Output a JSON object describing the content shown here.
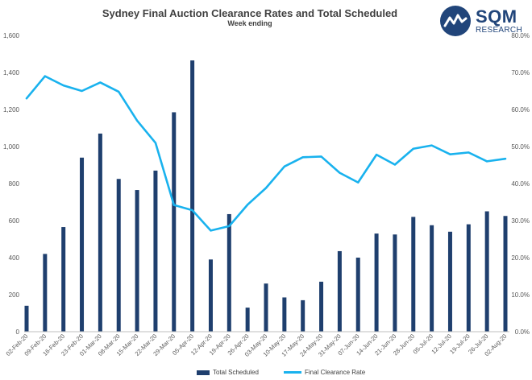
{
  "header": {
    "title": "Sydney Final Auction Clearance Rates and Total Scheduled",
    "subtitle": "Week ending"
  },
  "logo": {
    "name": "SQM",
    "tagline": "RESEARCH",
    "icon": "mountain-peaks-icon",
    "color": "#21457a"
  },
  "colors": {
    "bars": "#1f3f6e",
    "line": "#19b2ee"
  },
  "chart_data": {
    "type": "bar",
    "title": "Sydney Final Auction Clearance Rates and Total Scheduled",
    "subtitle": "Week ending",
    "categories": [
      "02-Feb-20",
      "09-Feb-20",
      "16-Feb-20",
      "23-Feb-20",
      "01-Mar-20",
      "08-Mar-20",
      "15-Mar-20",
      "22-Mar-20",
      "29-Mar-20",
      "05-Apr-20",
      "12-Apr-20",
      "19-Apr-20",
      "26-Apr-20",
      "03-May-20",
      "10-May-20",
      "17-May-20",
      "24-May-20",
      "31-May-20",
      "07-Jun-20",
      "14-Jun-20",
      "21-Jun-20",
      "28-Jun-20",
      "05-Jul-20",
      "12-Jul-20",
      "19-Jul-20",
      "26-Jul-20",
      "02-Aug-20"
    ],
    "series": [
      {
        "name": "Total Scheduled",
        "type": "bar",
        "axis": "left",
        "values": [
          140,
          420,
          565,
          940,
          1070,
          825,
          765,
          870,
          1185,
          1465,
          390,
          635,
          130,
          260,
          185,
          170,
          270,
          435,
          400,
          530,
          525,
          620,
          575,
          540,
          580,
          650,
          625
        ]
      },
      {
        "name": "Final Clearance Rate",
        "type": "line",
        "axis": "right",
        "values": [
          63.0,
          69.0,
          66.5,
          65.0,
          67.3,
          64.8,
          57.0,
          51.0,
          34.2,
          32.8,
          27.3,
          28.5,
          34.3,
          38.8,
          44.6,
          47.1,
          47.3,
          42.9,
          40.3,
          47.8,
          45.1,
          49.4,
          50.3,
          47.9,
          48.4,
          46.0,
          46.7
        ]
      }
    ],
    "y_left": {
      "ylim": [
        0,
        1600
      ],
      "ticks": [
        "0",
        "200",
        "400",
        "600",
        "800",
        "1,000",
        "1,200",
        "1,400",
        "1,600"
      ]
    },
    "y_right": {
      "ylim": [
        0,
        80
      ],
      "ticks": [
        "0.0%",
        "10.0%",
        "20.0%",
        "30.0%",
        "40.0%",
        "50.0%",
        "60.0%",
        "70.0%",
        "80.0%"
      ]
    },
    "grid": false,
    "legend": {
      "position": "bottom",
      "entries": [
        "Total Scheduled",
        "Final Clearance Rate"
      ]
    }
  }
}
